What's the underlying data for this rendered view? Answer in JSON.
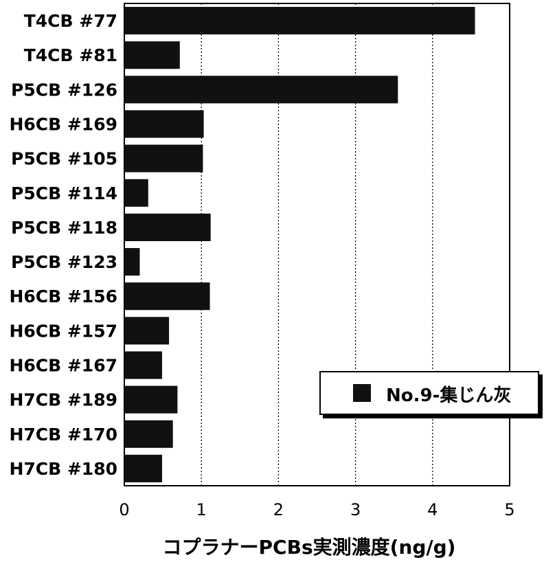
{
  "chart_data": {
    "type": "bar",
    "orientation": "horizontal",
    "title": "",
    "xlabel": "コプラナーPCBs実測濃度(ng/g)",
    "ylabel": "",
    "xlim": [
      0,
      5
    ],
    "xticks": [
      "0",
      "1",
      "2",
      "3",
      "4",
      "5"
    ],
    "grid": "vertical dotted lines",
    "legend_position": "bottom-right",
    "categories": [
      "T4CB #77",
      "T4CB #81",
      "P5CB #126",
      "H6CB #169",
      "P5CB #105",
      "P5CB #114",
      "P5CB #118",
      "P5CB #123",
      "H6CB #156",
      "H6CB #157",
      "H6CB #167",
      "H7CB #189",
      "H7CB #170",
      "H7CB #180"
    ],
    "series": [
      {
        "name": "No.9-集じん灰",
        "color": "#111111",
        "values": [
          4.55,
          0.72,
          3.55,
          1.03,
          1.02,
          0.31,
          1.12,
          0.2,
          1.11,
          0.58,
          0.49,
          0.69,
          0.63,
          0.49
        ]
      }
    ]
  }
}
